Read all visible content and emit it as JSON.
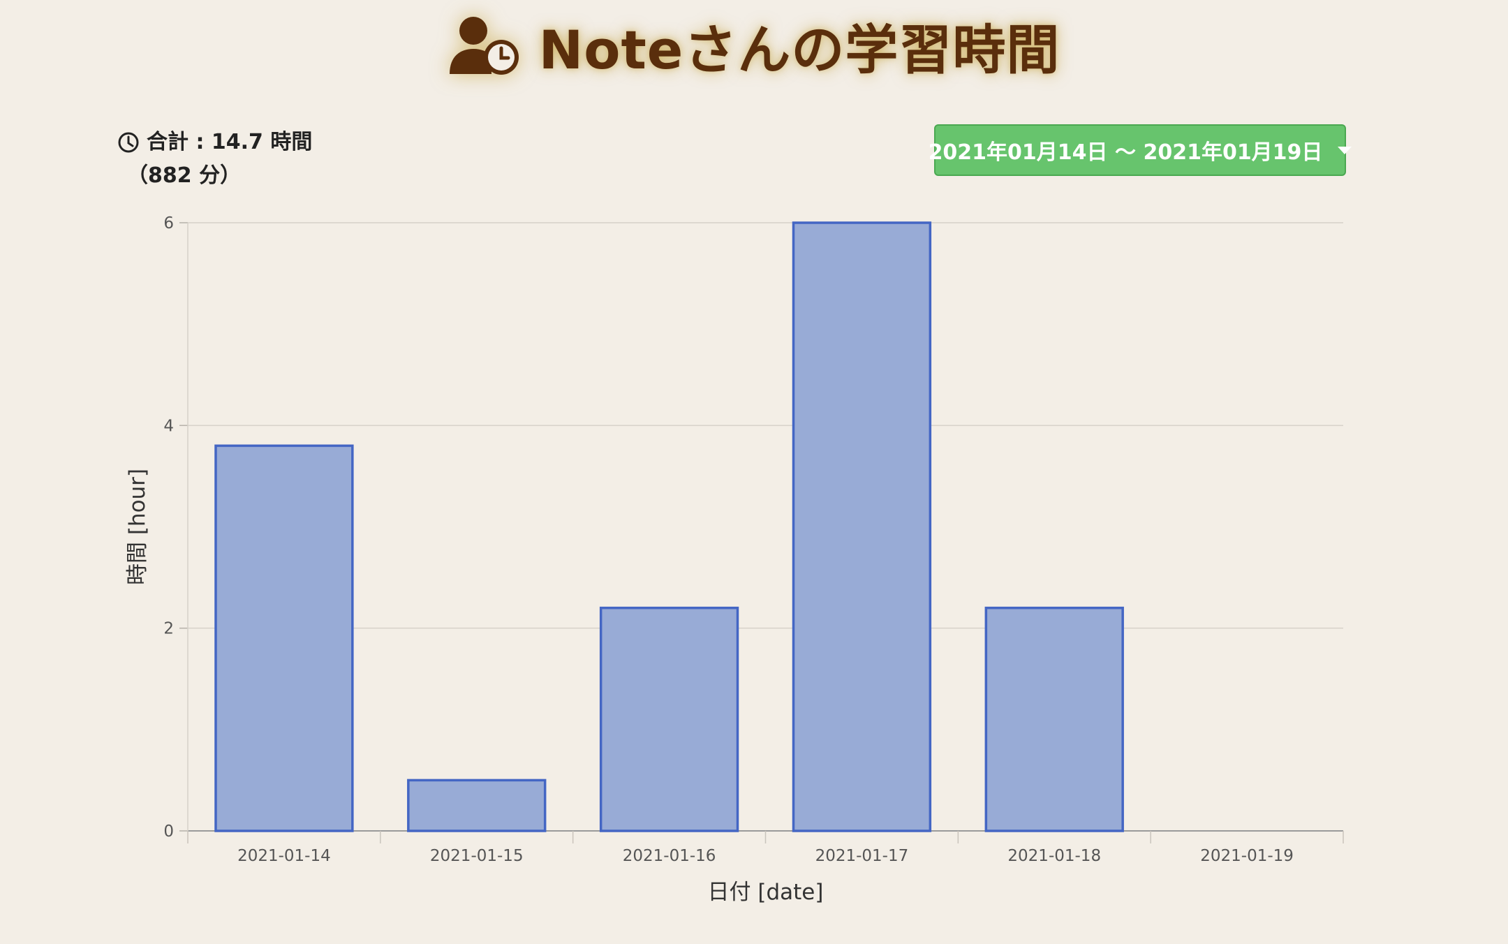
{
  "header": {
    "title": "Noteさんの学習時間",
    "icon": "user-clock-icon",
    "color": "#5a2e0c"
  },
  "summary": {
    "icon": "clock-icon",
    "total_text": "合計 : 14.7 時間",
    "minutes_text": "（882 分）"
  },
  "date_range": {
    "label": "2021年01月14日 〜 2021年01月19日",
    "color": "#67c46d"
  },
  "chart_data": {
    "type": "bar",
    "categories": [
      "2021-01-14",
      "2021-01-15",
      "2021-01-16",
      "2021-01-17",
      "2021-01-18",
      "2021-01-19"
    ],
    "values": [
      3.8,
      0.5,
      2.2,
      6.0,
      2.2,
      0
    ],
    "title": "",
    "xlabel": "日付 [date]",
    "ylabel": "時間 [hour]",
    "ylim": [
      0,
      6
    ],
    "yticks": [
      0,
      2,
      4,
      6
    ],
    "grid": true,
    "bar_fill": "#98abd6",
    "bar_border": "#4466c4"
  }
}
